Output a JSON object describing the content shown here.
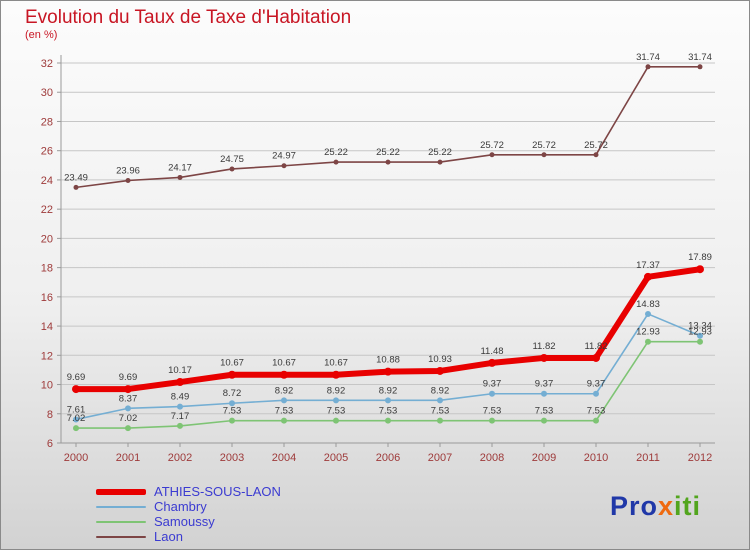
{
  "header": {
    "title": "Evolution du Taux de Taxe d'Habitation",
    "subtitle": "(en %)"
  },
  "colors": {
    "title": "#c81624",
    "axis_labels": "#9e3a3a",
    "data_labels": "#3a3a3a",
    "grid": "#c6c6c6",
    "axis_line": "#9a9a9a",
    "legend_text": "#3b3bd1"
  },
  "chart_data": {
    "type": "line",
    "title": "Evolution du Taux de Taxe d'Habitation",
    "subtitle": "(en %)",
    "xlabel": "",
    "ylabel": "",
    "x": [
      2000,
      2001,
      2002,
      2003,
      2004,
      2005,
      2006,
      2007,
      2008,
      2009,
      2010,
      2011,
      2012
    ],
    "ylim": [
      6,
      32
    ],
    "ytick_step": 2,
    "grid": true,
    "legend_position": "bottom-left",
    "series": [
      {
        "name": "ATHIES-SOUS-LAON",
        "color": "#e80000",
        "line_width": 6,
        "marker_radius": 4,
        "values": [
          9.69,
          9.69,
          10.17,
          10.67,
          10.67,
          10.67,
          10.88,
          10.93,
          11.48,
          11.82,
          11.82,
          17.37,
          17.89
        ]
      },
      {
        "name": "Chambry",
        "color": "#74aed3",
        "line_width": 1.6,
        "marker_radius": 3,
        "values": [
          7.61,
          8.37,
          8.49,
          8.72,
          8.92,
          8.92,
          8.92,
          8.92,
          9.37,
          9.37,
          9.37,
          14.83,
          13.34
        ]
      },
      {
        "name": "Samoussy",
        "color": "#7ec474",
        "line_width": 1.6,
        "marker_radius": 3,
        "values": [
          7.02,
          7.02,
          7.17,
          7.53,
          7.53,
          7.53,
          7.53,
          7.53,
          7.53,
          7.53,
          7.53,
          12.93,
          12.93
        ]
      },
      {
        "name": "Laon",
        "color": "#7d4545",
        "line_width": 1.6,
        "marker_radius": 2.5,
        "values": [
          23.49,
          23.96,
          24.17,
          24.75,
          24.97,
          25.22,
          25.22,
          25.22,
          25.72,
          25.72,
          25.72,
          31.74,
          31.74
        ]
      }
    ]
  },
  "logo": {
    "parts": [
      {
        "text": "Pro",
        "color": "#2038a8"
      },
      {
        "text": "x",
        "color": "#ef6a10"
      },
      {
        "text": "iti",
        "color": "#52a51e"
      }
    ]
  }
}
